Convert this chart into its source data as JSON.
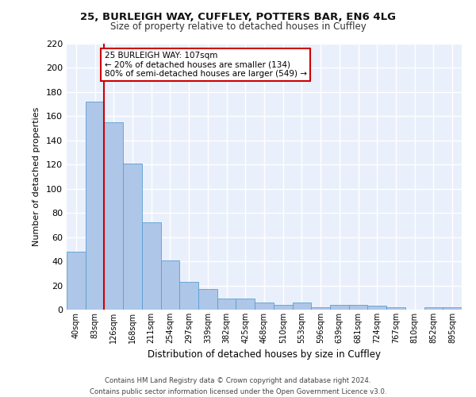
{
  "title1": "25, BURLEIGH WAY, CUFFLEY, POTTERS BAR, EN6 4LG",
  "title2": "Size of property relative to detached houses in Cuffley",
  "xlabel": "Distribution of detached houses by size in Cuffley",
  "ylabel": "Number of detached properties",
  "categories": [
    "40sqm",
    "83sqm",
    "126sqm",
    "168sqm",
    "211sqm",
    "254sqm",
    "297sqm",
    "339sqm",
    "382sqm",
    "425sqm",
    "468sqm",
    "510sqm",
    "553sqm",
    "596sqm",
    "639sqm",
    "681sqm",
    "724sqm",
    "767sqm",
    "810sqm",
    "852sqm",
    "895sqm"
  ],
  "values": [
    48,
    172,
    155,
    121,
    72,
    41,
    23,
    17,
    9,
    9,
    6,
    4,
    6,
    2,
    4,
    4,
    3,
    2,
    0,
    2,
    2
  ],
  "bar_color": "#aec6e8",
  "bar_edge_color": "#5a9fd4",
  "background_color": "#eaf0fb",
  "grid_color": "#ffffff",
  "redline_x": 1.5,
  "annotation_text": "25 BURLEIGH WAY: 107sqm\n← 20% of detached houses are smaller (134)\n80% of semi-detached houses are larger (549) →",
  "annotation_box_color": "#ffffff",
  "annotation_box_edge_color": "#cc0000",
  "footer": "Contains HM Land Registry data © Crown copyright and database right 2024.\nContains public sector information licensed under the Open Government Licence v3.0.",
  "ylim": [
    0,
    220
  ],
  "yticks": [
    0,
    20,
    40,
    60,
    80,
    100,
    120,
    140,
    160,
    180,
    200,
    220
  ]
}
